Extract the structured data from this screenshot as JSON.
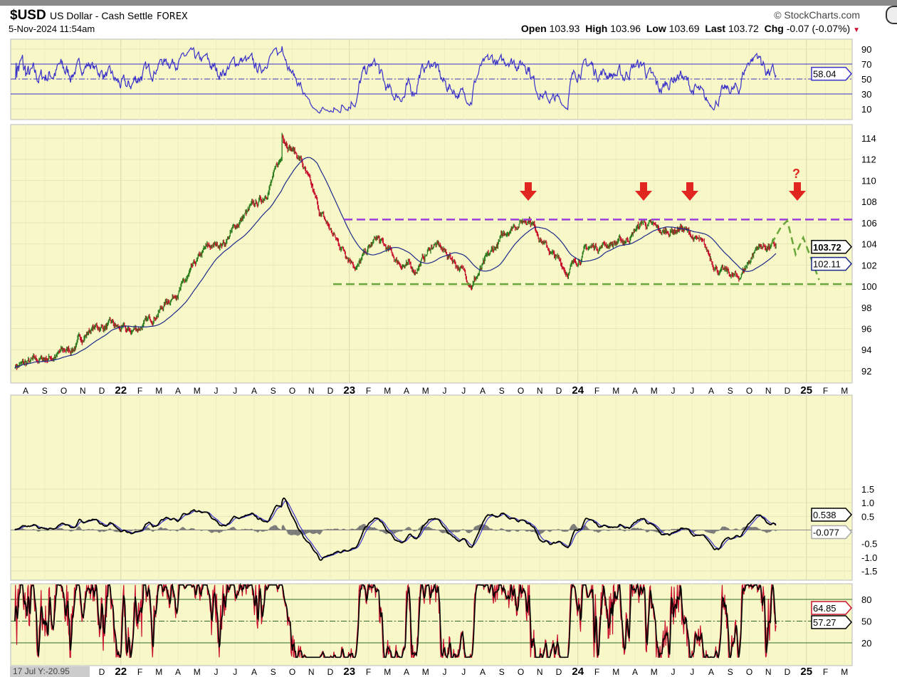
{
  "header": {
    "symbol": "$USD",
    "name": "US Dollar - Cash Settle",
    "exchange": "FOREX",
    "datetime": "5-Nov-2024 11:54am",
    "brand": "© StockCharts.com",
    "open_label": "Open",
    "open": "103.93",
    "high_label": "High",
    "high": "103.96",
    "low_label": "Low",
    "low": "103.69",
    "last_label": "Last",
    "last": "103.72",
    "chg_label": "Chg",
    "chg": "-0.07 (-0.07%)"
  },
  "cursor_readout": "17 Jul Y:-20.95",
  "chart_data": {
    "type": "ohlc",
    "x_tick_labels": [
      "A",
      "S",
      "O",
      "N",
      "D",
      "22",
      "F",
      "M",
      "A",
      "M",
      "J",
      "J",
      "A",
      "S",
      "O",
      "N",
      "D",
      "23",
      "F",
      "M",
      "A",
      "M",
      "J",
      "J",
      "A",
      "S",
      "O",
      "N",
      "D",
      "24",
      "F",
      "M",
      "A",
      "M",
      "J",
      "J",
      "A",
      "S",
      "O",
      "N",
      "D",
      "25",
      "F",
      "M"
    ],
    "price": {
      "yticks": [
        92,
        94,
        96,
        98,
        100,
        102,
        104,
        106,
        108,
        110,
        112,
        114
      ],
      "monthly_close": [
        [
          "2021-07",
          92.5
        ],
        [
          "2021-08",
          92.8
        ],
        [
          "2021-09",
          93.4
        ],
        [
          "2021-10",
          94.1
        ],
        [
          "2021-11",
          96.0
        ],
        [
          "2021-12",
          96.3
        ],
        [
          "2022-01",
          95.6
        ],
        [
          "2022-02",
          96.6
        ],
        [
          "2022-03",
          98.6
        ],
        [
          "2022-04",
          100.5
        ],
        [
          "2022-05",
          103.4
        ],
        [
          "2022-06",
          104.2
        ],
        [
          "2022-07",
          106.6
        ],
        [
          "2022-08",
          108.2
        ],
        [
          "2022-09",
          112.0
        ],
        [
          "2022-09-28",
          114.5
        ],
        [
          "2022-10",
          112.0
        ],
        [
          "2022-11",
          107.0
        ],
        [
          "2022-12",
          104.0
        ],
        [
          "2023-01",
          102.0
        ],
        [
          "2023-02",
          104.5
        ],
        [
          "2023-03",
          102.5
        ],
        [
          "2023-04",
          101.5
        ],
        [
          "2023-05",
          104.0
        ],
        [
          "2023-06",
          102.6
        ],
        [
          "2023-07",
          100.3
        ],
        [
          "2023-08",
          103.0
        ],
        [
          "2023-09",
          105.6
        ],
        [
          "2023-10",
          106.6
        ],
        [
          "2023-11",
          103.5
        ],
        [
          "2023-12",
          101.4
        ],
        [
          "2024-01",
          103.5
        ],
        [
          "2024-02",
          104.0
        ],
        [
          "2024-03",
          104.2
        ],
        [
          "2024-04",
          106.1
        ],
        [
          "2024-05",
          105.0
        ],
        [
          "2024-06",
          105.6
        ],
        [
          "2024-07",
          104.0
        ],
        [
          "2024-08",
          101.5
        ],
        [
          "2024-09",
          100.7
        ],
        [
          "2024-10",
          103.8
        ],
        [
          "2024-11",
          103.72
        ]
      ],
      "last": "103.72",
      "ma_value": "102.11",
      "resistance": 106.3,
      "support": 100.2,
      "question_mark": "?",
      "projection": [
        [
          "2024-11-20",
          104.0
        ],
        [
          "2024-12-05",
          105.6
        ],
        [
          "2024-12-15",
          106.2
        ],
        [
          "2024-12-28",
          103.0
        ],
        [
          "2025-01-10",
          104.6
        ],
        [
          "2025-02-05",
          100.6
        ]
      ]
    },
    "rsi": {
      "yticks": [
        10,
        30,
        50,
        70,
        90
      ],
      "levels": [
        30,
        70
      ],
      "last": "58.04"
    },
    "macd": {
      "yticks": [
        "1.5",
        "1.0",
        "0.5",
        "-0.5",
        "-1.0",
        "-1.5"
      ],
      "last": "0.538",
      "hist_last": "-0.077"
    },
    "stoch": {
      "yticks": [
        20,
        50,
        80
      ],
      "levels": [
        20,
        80
      ],
      "k_last": "64.85",
      "d_last": "57.27"
    },
    "colors": {
      "bg": "#f7f7c8",
      "up": "#2e7d1e",
      "down": "#c8102e",
      "ma": "#1b2a8a",
      "rsi": "#3a32c8",
      "resistance": "#9b3bdc",
      "support": "#6aa63a",
      "arrows": "#e0261f"
    }
  }
}
